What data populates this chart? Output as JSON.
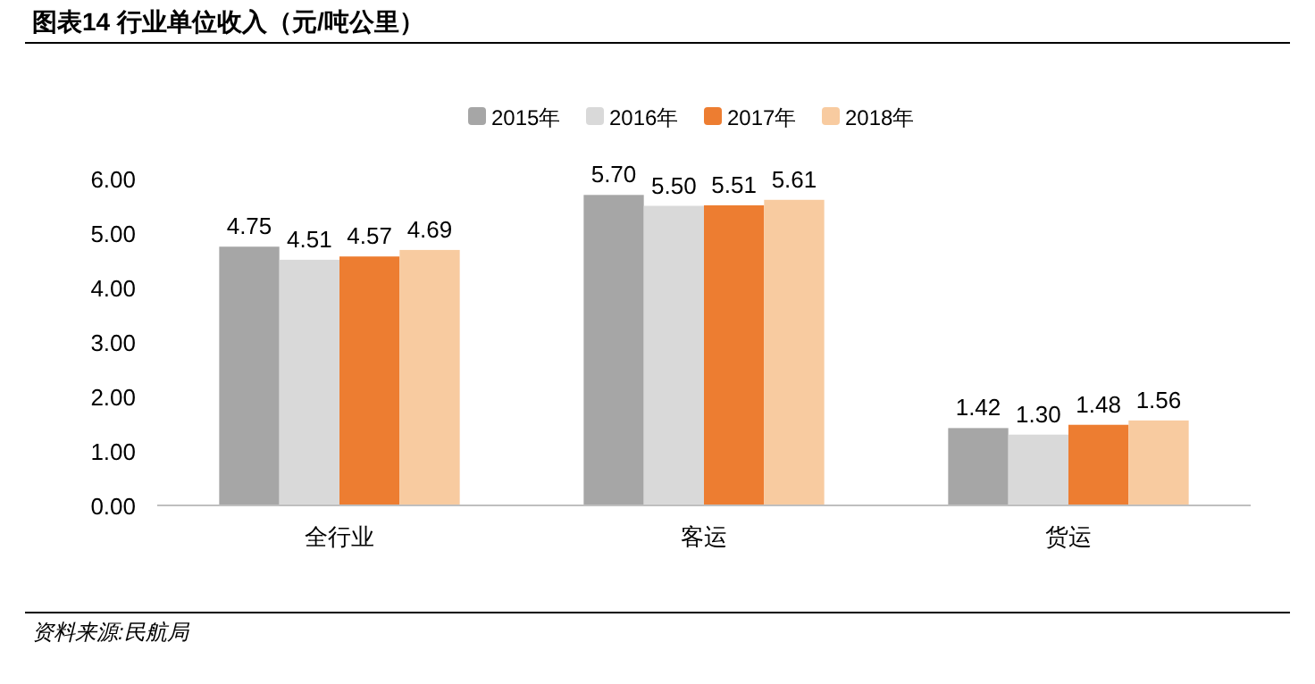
{
  "chart_data": {
    "type": "bar",
    "title": "图表14  行业单位收入（元/吨公里）",
    "categories": [
      "全行业",
      "客运",
      "货运"
    ],
    "series": [
      {
        "name": "2015年",
        "color": "#a6a6a6",
        "values": [
          4.75,
          5.7,
          1.42
        ],
        "value_labels": [
          "4.75",
          "5.70",
          "1.42"
        ]
      },
      {
        "name": "2016年",
        "color": "#d9d9d9",
        "values": [
          4.51,
          5.5,
          1.3
        ],
        "value_labels": [
          "4.51",
          "5.50",
          "1.30"
        ]
      },
      {
        "name": "2017年",
        "color": "#ed7d31",
        "values": [
          4.57,
          5.51,
          1.48
        ],
        "value_labels": [
          "4.57",
          "5.51",
          "1.48"
        ]
      },
      {
        "name": "2018年",
        "color": "#f8cba0",
        "values": [
          4.69,
          5.61,
          1.56
        ],
        "value_labels": [
          "4.69",
          "5.61",
          "1.56"
        ]
      }
    ],
    "ylim": [
      0,
      6
    ],
    "yticks": [
      {
        "value": 0,
        "label": "0.00"
      },
      {
        "value": 1,
        "label": "1.00"
      },
      {
        "value": 2,
        "label": "2.00"
      },
      {
        "value": 3,
        "label": "3.00"
      },
      {
        "value": 4,
        "label": "4.00"
      },
      {
        "value": 5,
        "label": "5.00"
      },
      {
        "value": 6,
        "label": "6.00"
      }
    ],
    "grid": false,
    "legend": "top",
    "annotations": [
      "资料来源:民航局"
    ]
  }
}
